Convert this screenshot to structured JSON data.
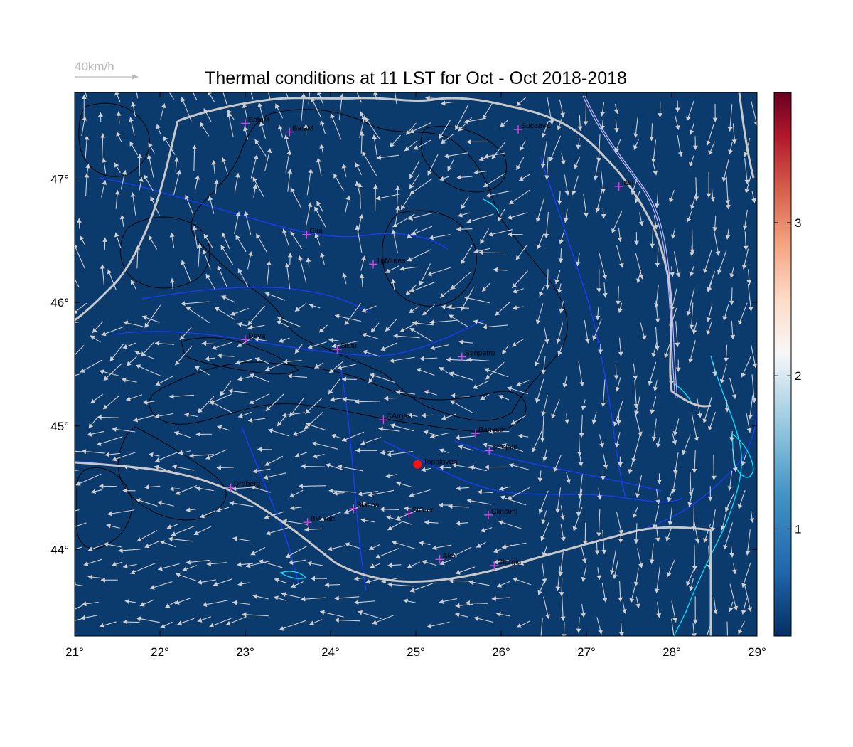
{
  "title": "Thermal conditions at 11 LST for Oct - Oct  2018-2018",
  "wind_scale": {
    "label": "40km/h",
    "color": "#bcbcbc"
  },
  "map": {
    "lon_range": [
      21,
      29
    ],
    "lat_range": [
      43.3,
      47.7
    ],
    "lon_ticks": [
      "21°",
      "22°",
      "23°",
      "24°",
      "25°",
      "26°",
      "27°",
      "28°",
      "29°"
    ],
    "lat_ticks": [
      "44°",
      "45°",
      "46°",
      "47°"
    ],
    "background_color": "#0b3a6d",
    "contour_color": "#000000",
    "border_color": "#c8c8c8",
    "river_color": "#1a3cff",
    "lake_color": "#00e5ff",
    "arrow_color": "#cfcfcf",
    "station_marker_color": "#e040e0",
    "highlight_marker_color": "#ff1010"
  },
  "colorbar": {
    "range": [
      0.3,
      3.85
    ],
    "ticks": [
      "1",
      "2",
      "3"
    ],
    "colormap": "RdBu_r"
  },
  "stations": [
    {
      "name": "SatuM",
      "lon": 23.0,
      "lat": 47.45
    },
    {
      "name": "BaiaM",
      "lon": 23.52,
      "lat": 47.38
    },
    {
      "name": "Suceava",
      "lon": 26.2,
      "lat": 47.4
    },
    {
      "name": "Iasi",
      "lon": 27.38,
      "lat": 46.94
    },
    {
      "name": "Cluj",
      "lon": 23.72,
      "lat": 46.55
    },
    {
      "name": "TgMures",
      "lon": 24.5,
      "lat": 46.31
    },
    {
      "name": "Deva",
      "lon": 23.0,
      "lat": 45.7
    },
    {
      "name": "Sibiu",
      "lon": 24.08,
      "lat": 45.62
    },
    {
      "name": "Sanpetru",
      "lon": 25.54,
      "lat": 45.56
    },
    {
      "name": "CArges",
      "lon": 24.62,
      "lat": 45.05
    },
    {
      "name": "Banesti",
      "lon": 25.7,
      "lat": 44.94
    },
    {
      "name": "Strejnic",
      "lon": 25.86,
      "lat": 44.8
    },
    {
      "name": "Drobeta",
      "lon": 22.83,
      "lat": 44.5
    },
    {
      "name": "Slatina",
      "lon": 24.27,
      "lat": 44.33
    },
    {
      "name": "SlGum",
      "lon": 24.92,
      "lat": 44.29
    },
    {
      "name": "BVerde",
      "lon": 23.73,
      "lat": 44.22
    },
    {
      "name": "Clinceni",
      "lon": 25.85,
      "lat": 44.28
    },
    {
      "name": "Alex",
      "lon": 25.28,
      "lat": 43.92
    },
    {
      "name": "Giurgiu",
      "lon": 25.92,
      "lat": 43.87
    }
  ],
  "highlight_station": {
    "name": "Topoloveni",
    "lon": 25.02,
    "lat": 44.69
  }
}
